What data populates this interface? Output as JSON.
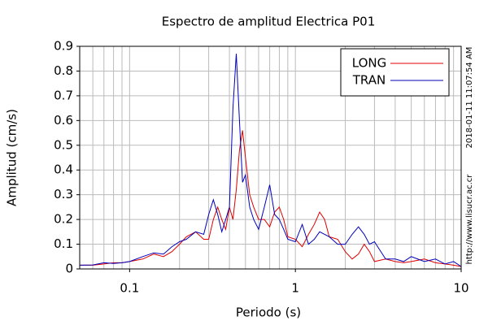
{
  "chart_data": {
    "type": "line",
    "title": "Espectro de amplitud Electrica P01",
    "x_label": "Periodo (s)",
    "y_label": "Amplitud (cm/s)",
    "timestamp": "2018-01-11 11:07:54 AM",
    "source": "http://www.lisucr.ac.cr",
    "x_log": true,
    "grid": true,
    "legend": "top-right",
    "xlim": [
      0.05,
      10
    ],
    "ylim": [
      0,
      0.9
    ],
    "xticks": [
      0.1,
      1,
      10
    ],
    "xminorticks": [
      0.06,
      0.07,
      0.08,
      0.09,
      0.2,
      0.3,
      0.4,
      0.5,
      0.6,
      0.7,
      0.8,
      0.9,
      2,
      3,
      4,
      5,
      6,
      7,
      8,
      9
    ],
    "yticks": [
      0,
      0.1,
      0.2,
      0.3,
      0.4,
      0.5,
      0.6,
      0.7,
      0.8,
      0.9
    ],
    "x": [
      0.05,
      0.06,
      0.07,
      0.08,
      0.09,
      0.1,
      0.12,
      0.14,
      0.16,
      0.18,
      0.2,
      0.22,
      0.25,
      0.28,
      0.3,
      0.32,
      0.34,
      0.36,
      0.38,
      0.4,
      0.42,
      0.44,
      0.46,
      0.48,
      0.5,
      0.53,
      0.56,
      0.6,
      0.65,
      0.7,
      0.75,
      0.8,
      0.85,
      0.9,
      1.0,
      1.1,
      1.2,
      1.3,
      1.4,
      1.5,
      1.6,
      1.8,
      2.0,
      2.2,
      2.4,
      2.6,
      2.8,
      3.0,
      3.5,
      4,
      4.5,
      5,
      6,
      7,
      8,
      9,
      10
    ],
    "series": [
      {
        "name": "LONG",
        "color": "#dd0000",
        "values": [
          0.015,
          0.015,
          0.02,
          0.025,
          0.025,
          0.03,
          0.04,
          0.06,
          0.05,
          0.07,
          0.1,
          0.13,
          0.15,
          0.12,
          0.12,
          0.2,
          0.25,
          0.2,
          0.16,
          0.25,
          0.2,
          0.32,
          0.48,
          0.56,
          0.45,
          0.3,
          0.25,
          0.2,
          0.2,
          0.17,
          0.23,
          0.25,
          0.2,
          0.13,
          0.12,
          0.09,
          0.14,
          0.18,
          0.23,
          0.2,
          0.13,
          0.12,
          0.07,
          0.04,
          0.06,
          0.1,
          0.07,
          0.03,
          0.04,
          0.03,
          0.025,
          0.03,
          0.04,
          0.025,
          0.02,
          0.015,
          0.01
        ]
      },
      {
        "name": "TRAN",
        "color": "#0000bb",
        "values": [
          0.015,
          0.016,
          0.025,
          0.022,
          0.025,
          0.03,
          0.05,
          0.065,
          0.06,
          0.09,
          0.11,
          0.12,
          0.15,
          0.14,
          0.22,
          0.28,
          0.22,
          0.15,
          0.2,
          0.25,
          0.65,
          0.87,
          0.6,
          0.35,
          0.38,
          0.25,
          0.2,
          0.16,
          0.25,
          0.34,
          0.22,
          0.2,
          0.16,
          0.12,
          0.11,
          0.18,
          0.1,
          0.12,
          0.15,
          0.14,
          0.13,
          0.1,
          0.1,
          0.14,
          0.17,
          0.14,
          0.1,
          0.11,
          0.04,
          0.04,
          0.03,
          0.05,
          0.03,
          0.04,
          0.02,
          0.03,
          0.01
        ]
      }
    ]
  }
}
